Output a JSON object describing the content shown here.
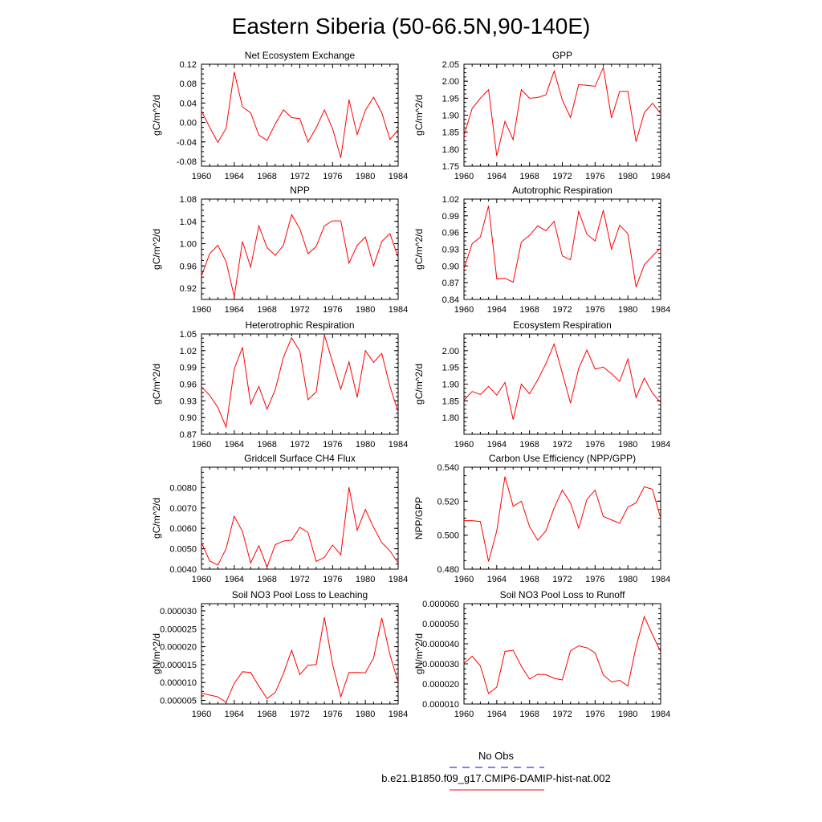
{
  "title": "Eastern Siberia (50-66.5N,90-140E)",
  "legend": [
    {
      "label": "No Obs",
      "color": "#0000ff",
      "dash": "dashed"
    },
    {
      "label": "b.e21.B1850.f09_g17.CMIP6-DAMIP-hist-nat.002",
      "color": "#ff0000",
      "dash": "solid"
    }
  ],
  "chart_data": [
    {
      "type": "line",
      "title": "Net Ecosystem Exchange",
      "ylabel": "gC/m^2/d",
      "xlim": [
        1960,
        1984
      ],
      "ylim": [
        -0.09,
        0.12
      ],
      "x_ticks": [
        1960,
        1964,
        1968,
        1972,
        1976,
        1980,
        1984
      ],
      "y_ticks": [
        "-0.08",
        "-0.04",
        "0.00",
        "0.04",
        "0.08",
        "0.12"
      ],
      "x": [
        1960,
        1961,
        1962,
        1963,
        1964,
        1965,
        1966,
        1967,
        1968,
        1969,
        1970,
        1971,
        1972,
        1973,
        1974,
        1975,
        1976,
        1977,
        1978,
        1979,
        1980,
        1981,
        1982,
        1983,
        1984
      ],
      "series": [
        {
          "color": "#ff0000",
          "values": [
            0.024,
            -0.01,
            -0.041,
            -0.012,
            0.104,
            0.032,
            0.02,
            -0.026,
            -0.037,
            -0.003,
            0.026,
            0.01,
            0.008,
            -0.04,
            -0.011,
            0.026,
            -0.013,
            -0.073,
            0.047,
            -0.025,
            0.025,
            0.052,
            0.02,
            -0.035,
            -0.015
          ]
        }
      ]
    },
    {
      "type": "line",
      "title": "GPP",
      "ylabel": "gC/m^2/d",
      "xlim": [
        1960,
        1984
      ],
      "ylim": [
        1.75,
        2.05
      ],
      "x_ticks": [
        1960,
        1964,
        1968,
        1972,
        1976,
        1980,
        1984
      ],
      "y_ticks": [
        "1.75",
        "1.80",
        "1.85",
        "1.90",
        "1.95",
        "2.00",
        "2.05"
      ],
      "x": [
        1960,
        1961,
        1962,
        1963,
        1964,
        1965,
        1966,
        1967,
        1968,
        1969,
        1970,
        1971,
        1972,
        1973,
        1974,
        1975,
        1976,
        1977,
        1978,
        1979,
        1980,
        1981,
        1982,
        1983,
        1984
      ],
      "series": [
        {
          "color": "#ff0000",
          "values": [
            1.84,
            1.92,
            1.95,
            1.975,
            1.78,
            1.882,
            1.828,
            1.975,
            1.95,
            1.952,
            1.96,
            2.03,
            1.945,
            1.893,
            1.99,
            1.988,
            1.985,
            2.04,
            1.892,
            1.97,
            1.97,
            1.822,
            1.907,
            1.935,
            1.905
          ]
        }
      ]
    },
    {
      "type": "line",
      "title": "NPP",
      "ylabel": "gC/m^2/d",
      "xlim": [
        1960,
        1984
      ],
      "ylim": [
        0.9,
        1.08
      ],
      "x_ticks": [
        1960,
        1964,
        1968,
        1972,
        1976,
        1980,
        1984
      ],
      "y_ticks": [
        "0.92",
        "0.96",
        "1.00",
        "1.04",
        "1.08"
      ],
      "x": [
        1960,
        1961,
        1962,
        1963,
        1964,
        1965,
        1966,
        1967,
        1968,
        1969,
        1970,
        1971,
        1972,
        1973,
        1974,
        1975,
        1976,
        1977,
        1978,
        1979,
        1980,
        1981,
        1982,
        1983,
        1984
      ],
      "series": [
        {
          "color": "#ff0000",
          "values": [
            0.942,
            0.982,
            0.997,
            0.968,
            0.905,
            1.004,
            0.958,
            1.032,
            0.993,
            0.979,
            0.997,
            1.052,
            1.027,
            0.982,
            0.995,
            1.032,
            1.041,
            1.041,
            0.965,
            0.997,
            1.012,
            0.96,
            1.004,
            1.018,
            0.975
          ]
        }
      ]
    },
    {
      "type": "line",
      "title": "Autotrophic Respiration",
      "ylabel": "gC/m^2/d",
      "xlim": [
        1960,
        1984
      ],
      "ylim": [
        0.84,
        1.02
      ],
      "x_ticks": [
        1960,
        1964,
        1968,
        1972,
        1976,
        1980,
        1984
      ],
      "y_ticks": [
        "0.84",
        "0.87",
        "0.90",
        "0.93",
        "0.96",
        "0.99",
        "1.02"
      ],
      "x": [
        1960,
        1961,
        1962,
        1963,
        1964,
        1965,
        1966,
        1967,
        1968,
        1969,
        1970,
        1971,
        1972,
        1973,
        1974,
        1975,
        1976,
        1977,
        1978,
        1979,
        1980,
        1981,
        1982,
        1983,
        1984
      ],
      "series": [
        {
          "color": "#ff0000",
          "values": [
            0.895,
            0.94,
            0.952,
            1.008,
            0.877,
            0.878,
            0.871,
            0.943,
            0.955,
            0.972,
            0.963,
            0.98,
            0.918,
            0.911,
            0.998,
            0.957,
            0.945,
            1.0,
            0.93,
            0.973,
            0.958,
            0.862,
            0.902,
            0.918,
            0.932
          ]
        }
      ]
    },
    {
      "type": "line",
      "title": "Heterotrophic Respiration",
      "ylabel": "gC/m^2/d",
      "xlim": [
        1960,
        1984
      ],
      "ylim": [
        0.87,
        1.05
      ],
      "x_ticks": [
        1960,
        1964,
        1968,
        1972,
        1976,
        1980,
        1984
      ],
      "y_ticks": [
        "0.87",
        "0.90",
        "0.93",
        "0.96",
        "0.99",
        "1.02",
        "1.05"
      ],
      "x": [
        1960,
        1961,
        1962,
        1963,
        1964,
        1965,
        1966,
        1967,
        1968,
        1969,
        1970,
        1971,
        1972,
        1973,
        1974,
        1975,
        1976,
        1977,
        1978,
        1979,
        1980,
        1981,
        1982,
        1983,
        1984
      ],
      "series": [
        {
          "color": "#ff0000",
          "values": [
            0.955,
            0.94,
            0.918,
            0.883,
            0.987,
            1.026,
            0.924,
            0.956,
            0.915,
            0.95,
            1.008,
            1.043,
            1.019,
            0.932,
            0.946,
            1.048,
            0.999,
            0.951,
            1.0,
            0.936,
            1.02,
            0.999,
            1.015,
            0.956,
            0.91
          ]
        }
      ]
    },
    {
      "type": "line",
      "title": "Ecosystem Respiration",
      "ylabel": "gC/m^2/d",
      "xlim": [
        1960,
        1984
      ],
      "ylim": [
        1.75,
        2.05
      ],
      "x_ticks": [
        1960,
        1964,
        1968,
        1972,
        1976,
        1980,
        1984
      ],
      "y_ticks": [
        "1.80",
        "1.85",
        "1.90",
        "1.95",
        "2.00"
      ],
      "x": [
        1960,
        1961,
        1962,
        1963,
        1964,
        1965,
        1966,
        1967,
        1968,
        1969,
        1970,
        1971,
        1972,
        1973,
        1974,
        1975,
        1976,
        1977,
        1978,
        1979,
        1980,
        1981,
        1982,
        1983,
        1984
      ],
      "series": [
        {
          "color": "#ff0000",
          "values": [
            1.852,
            1.878,
            1.869,
            1.893,
            1.867,
            1.905,
            1.794,
            1.9,
            1.871,
            1.913,
            1.961,
            2.02,
            1.933,
            1.843,
            1.947,
            2.002,
            1.945,
            1.951,
            1.931,
            1.908,
            1.975,
            1.86,
            1.918,
            1.873,
            1.845
          ]
        }
      ]
    },
    {
      "type": "line",
      "title": "Gridcell Surface CH4 Flux",
      "ylabel": "gC/m^2/d",
      "xlim": [
        1960,
        1984
      ],
      "ylim": [
        0.004,
        0.009
      ],
      "x_ticks": [
        1960,
        1964,
        1968,
        1972,
        1976,
        1980,
        1984
      ],
      "y_ticks": [
        "0.0040",
        "0.0050",
        "0.0060",
        "0.0070",
        "0.0080"
      ],
      "x": [
        1960,
        1961,
        1962,
        1963,
        1964,
        1965,
        1966,
        1967,
        1968,
        1969,
        1970,
        1971,
        1972,
        1973,
        1974,
        1975,
        1976,
        1977,
        1978,
        1979,
        1980,
        1981,
        1982,
        1983,
        1984
      ],
      "series": [
        {
          "color": "#ff0000",
          "values": [
            0.0053,
            0.0044,
            0.0042,
            0.005,
            0.0066,
            0.00585,
            0.0043,
            0.00515,
            0.0041,
            0.0052,
            0.00538,
            0.00542,
            0.00605,
            0.0058,
            0.00438,
            0.00458,
            0.00518,
            0.0047,
            0.00802,
            0.0059,
            0.00693,
            0.00605,
            0.0053,
            0.0049,
            0.0043
          ]
        }
      ]
    },
    {
      "type": "line",
      "title": "Carbon Use Efficiency (NPP/GPP)",
      "ylabel": "NPP/GPP",
      "xlim": [
        1960,
        1984
      ],
      "ylim": [
        0.48,
        0.54
      ],
      "x_ticks": [
        1960,
        1964,
        1968,
        1972,
        1976,
        1980,
        1984
      ],
      "y_ticks": [
        "0.480",
        "0.500",
        "0.520",
        "0.540"
      ],
      "x": [
        1960,
        1961,
        1962,
        1963,
        1964,
        1965,
        1966,
        1967,
        1968,
        1969,
        1970,
        1971,
        1972,
        1973,
        1974,
        1975,
        1976,
        1977,
        1978,
        1979,
        1980,
        1981,
        1982,
        1983,
        1984
      ],
      "series": [
        {
          "color": "#ff0000",
          "values": [
            0.5085,
            0.5085,
            0.508,
            0.4845,
            0.5025,
            0.5345,
            0.517,
            0.52,
            0.505,
            0.497,
            0.5025,
            0.516,
            0.5265,
            0.519,
            0.504,
            0.521,
            0.5265,
            0.511,
            0.509,
            0.507,
            0.5165,
            0.519,
            0.5285,
            0.527,
            0.51
          ]
        }
      ]
    },
    {
      "type": "line",
      "title": "Soil NO3 Pool Loss to Leaching",
      "ylabel": "gN/m^2/d",
      "xlim": [
        1960,
        1984
      ],
      "ylim": [
        4e-06,
        3.2e-05
      ],
      "x_ticks": [
        1960,
        1964,
        1968,
        1972,
        1976,
        1980,
        1984
      ],
      "y_ticks": [
        "0.000005",
        "0.000010",
        "0.000015",
        "0.000020",
        "0.000025",
        "0.000030"
      ],
      "x": [
        1960,
        1961,
        1962,
        1963,
        1964,
        1965,
        1966,
        1967,
        1968,
        1969,
        1970,
        1971,
        1972,
        1973,
        1974,
        1975,
        1976,
        1977,
        1978,
        1979,
        1980,
        1981,
        1982,
        1983,
        1984
      ],
      "series": [
        {
          "color": "#ff0000",
          "values": [
            7e-06,
            6.5e-06,
            6e-06,
            4.5e-06,
            9.8e-06,
            1.3e-05,
            1.28e-05,
            9e-06,
            5.5e-06,
            7.2e-06,
            1.25e-05,
            1.9e-05,
            1.22e-05,
            1.48e-05,
            1.5e-05,
            2.82e-05,
            1.5e-05,
            6e-06,
            1.28e-05,
            1.28e-05,
            1.27e-05,
            1.68e-05,
            2.8e-05,
            1.78e-05,
            1e-05
          ]
        }
      ]
    },
    {
      "type": "line",
      "title": "Soil NO3 Pool Loss to Runoff",
      "ylabel": "gN/m^2/d",
      "xlim": [
        1960,
        1984
      ],
      "ylim": [
        1e-05,
        6e-05
      ],
      "x_ticks": [
        1960,
        1964,
        1968,
        1972,
        1976,
        1980,
        1984
      ],
      "y_ticks": [
        "0.000010",
        "0.000020",
        "0.000030",
        "0.000040",
        "0.000050",
        "0.000060"
      ],
      "x": [
        1960,
        1961,
        1962,
        1963,
        1964,
        1965,
        1966,
        1967,
        1968,
        1969,
        1970,
        1971,
        1972,
        1973,
        1974,
        1975,
        1976,
        1977,
        1978,
        1979,
        1980,
        1981,
        1982,
        1983,
        1984
      ],
      "series": [
        {
          "color": "#ff0000",
          "values": [
            3.02e-05,
            3.38e-05,
            2.9e-05,
            1.52e-05,
            1.84e-05,
            3.62e-05,
            3.68e-05,
            2.88e-05,
            2.24e-05,
            2.48e-05,
            2.46e-05,
            2.28e-05,
            2.2e-05,
            3.65e-05,
            3.9e-05,
            3.8e-05,
            3.55e-05,
            2.45e-05,
            2.1e-05,
            2.18e-05,
            1.9e-05,
            3.86e-05,
            5.35e-05,
            4.46e-05,
            3.6e-05
          ]
        }
      ]
    }
  ]
}
